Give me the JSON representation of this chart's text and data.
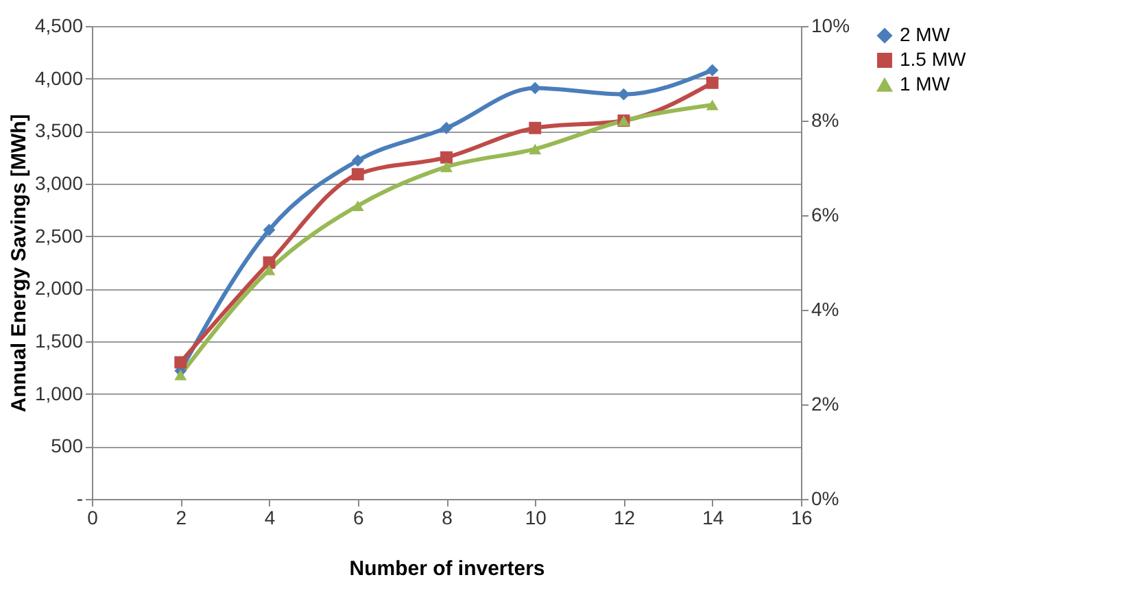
{
  "chart_data": {
    "type": "line",
    "xlabel": "Number of inverters",
    "ylabel": "Annual Energy Savings [MWh]",
    "x": [
      2,
      4,
      6,
      8,
      10,
      12,
      14
    ],
    "series": [
      {
        "name": "2 MW",
        "color": "#4a7ebb",
        "marker": "diamond",
        "values": [
          1220,
          2560,
          3220,
          3530,
          3910,
          3850,
          4080
        ]
      },
      {
        "name": "1.5 MW",
        "color": "#be4b48",
        "marker": "square",
        "values": [
          1300,
          2250,
          3090,
          3250,
          3530,
          3600,
          3960
        ]
      },
      {
        "name": "1 MW",
        "color": "#98b954",
        "marker": "triangle",
        "values": [
          1180,
          2180,
          2790,
          3160,
          3330,
          3600,
          3750
        ]
      }
    ],
    "xlim": [
      0,
      16
    ],
    "xticks": [
      0,
      2,
      4,
      6,
      8,
      10,
      12,
      14,
      16
    ],
    "ylim": [
      0,
      4500
    ],
    "yticks": [
      {
        "value": 0,
        "label": "-"
      },
      500,
      {
        "value": 1000,
        "label": "1,000"
      },
      {
        "value": 1500,
        "label": "1,500"
      },
      {
        "value": 2000,
        "label": "2,000"
      },
      {
        "value": 2500,
        "label": "2,500"
      },
      {
        "value": 3000,
        "label": "3,000"
      },
      {
        "value": 3500,
        "label": "3,500"
      },
      {
        "value": 4000,
        "label": "4,000"
      },
      {
        "value": 4500,
        "label": "4,500"
      }
    ],
    "y2lim": [
      0,
      10
    ],
    "y2ticks": [
      {
        "value": 0,
        "label": "0%"
      },
      {
        "value": 2,
        "label": "2%"
      },
      {
        "value": 4,
        "label": "4%"
      },
      {
        "value": 6,
        "label": "6%"
      },
      {
        "value": 8,
        "label": "8%"
      },
      {
        "value": 10,
        "label": "10%"
      }
    ],
    "grid": "y",
    "legend": "right",
    "line_style": "solid"
  }
}
